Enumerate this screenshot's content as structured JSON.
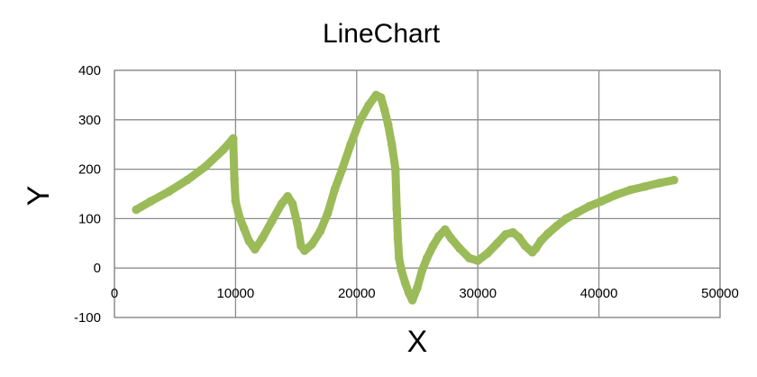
{
  "chart_data": {
    "type": "scatter",
    "title": "LineChart",
    "xlabel": "X",
    "ylabel": "Y",
    "xlim": [
      0,
      50000
    ],
    "ylim": [
      -100,
      400
    ],
    "xticks": [
      0,
      10000,
      20000,
      30000,
      40000,
      50000
    ],
    "yticks": [
      -100,
      0,
      100,
      200,
      300,
      400
    ],
    "grid": true,
    "series_color": "#9bbb59",
    "series": [
      {
        "x": [
          1800,
          3000,
          4500,
          6000,
          7500,
          9000,
          9800,
          9900,
          10000,
          10300,
          10700,
          11100,
          11600,
          12200,
          13000,
          13800,
          14300,
          14700,
          15100,
          15400,
          15700,
          16300,
          17000,
          17600,
          18200,
          18800,
          19500,
          20200,
          21000,
          21600,
          22000,
          22300,
          22600,
          22900,
          23200,
          23300,
          23400,
          23500,
          23700,
          24000,
          24300,
          24600,
          25000,
          25400,
          25800,
          26300,
          26800,
          27300,
          27800,
          28500,
          29300,
          30000,
          30800,
          31600,
          32300,
          32900,
          33400,
          33900,
          34500,
          34800,
          35200,
          35800,
          36500,
          37300,
          38200,
          39200,
          40200,
          41400,
          42600,
          43800,
          45000,
          46200
        ],
        "y": [
          118,
          135,
          155,
          178,
          205,
          240,
          262,
          180,
          135,
          105,
          80,
          55,
          38,
          60,
          95,
          130,
          145,
          130,
          90,
          45,
          35,
          48,
          75,
          110,
          160,
          200,
          250,
          295,
          330,
          350,
          345,
          320,
          290,
          250,
          200,
          120,
          60,
          20,
          -5,
          -30,
          -50,
          -65,
          -40,
          -5,
          20,
          45,
          65,
          78,
          60,
          40,
          20,
          15,
          30,
          50,
          68,
          72,
          62,
          45,
          32,
          40,
          55,
          70,
          85,
          100,
          112,
          125,
          135,
          148,
          158,
          165,
          172,
          178
        ]
      }
    ]
  }
}
